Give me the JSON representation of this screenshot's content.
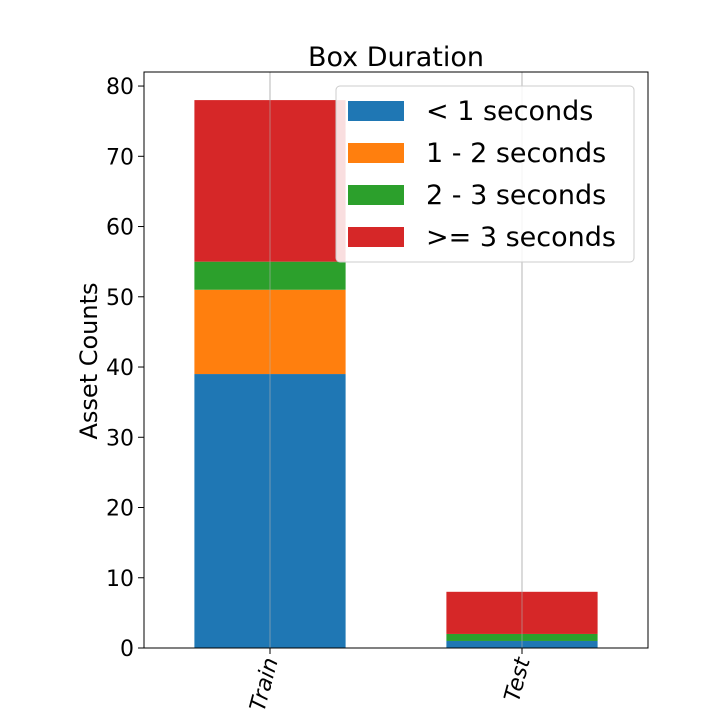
{
  "chart_data": {
    "type": "bar",
    "stacked": true,
    "title": "Box Duration",
    "xlabel": "",
    "ylabel": "Asset Counts",
    "categories": [
      "Train",
      "Test"
    ],
    "series": [
      {
        "name": "< 1 seconds",
        "color": "#1f77b4",
        "values": [
          39,
          1
        ]
      },
      {
        "name": "1 - 2 seconds",
        "color": "#ff7f0e",
        "values": [
          12,
          0
        ]
      },
      {
        "name": "2 - 3 seconds",
        "color": "#2ca02c",
        "values": [
          4,
          1
        ]
      },
      {
        "name": ">= 3 seconds",
        "color": "#d62728",
        "values": [
          23,
          6
        ]
      }
    ],
    "ylim": [
      0,
      82
    ],
    "yticks": [
      0,
      10,
      20,
      30,
      40,
      50,
      60,
      70,
      80
    ],
    "xgrid": true,
    "ygrid": false,
    "legend_position": "top-right",
    "xtick_rotation_deg": 75
  }
}
